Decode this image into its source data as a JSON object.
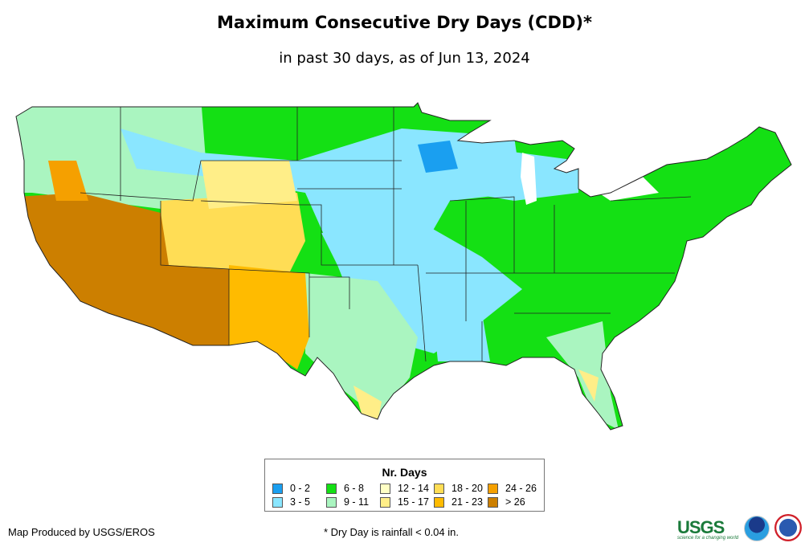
{
  "header": {
    "title": "Maximum Consecutive Dry Days (CDD)*",
    "subtitle": "in past 30 days, as of Jun 13, 2024"
  },
  "legend": {
    "title": "Nr. Days",
    "items": [
      {
        "label": "0 - 2",
        "color": "#1a9ff0"
      },
      {
        "label": "3 - 5",
        "color": "#8ae6ff"
      },
      {
        "label": "6 - 8",
        "color": "#14e014"
      },
      {
        "label": "9 - 11",
        "color": "#aaf5c0"
      },
      {
        "label": "12 - 14",
        "color": "#ffffc4"
      },
      {
        "label": "15 - 17",
        "color": "#ffee88"
      },
      {
        "label": "18 - 20",
        "color": "#ffdd55"
      },
      {
        "label": "21 - 23",
        "color": "#ffbb00"
      },
      {
        "label": "24 - 26",
        "color": "#f5a000"
      },
      {
        "label": "> 26",
        "color": "#cc7f00"
      }
    ]
  },
  "footer": {
    "credit": "Map Produced by USGS/EROS",
    "note": "* Dry Day is rainfall < 0.04 in.",
    "logos": [
      "USGS",
      "science for a changing world",
      "NOAA",
      "National Weather Service"
    ]
  }
}
